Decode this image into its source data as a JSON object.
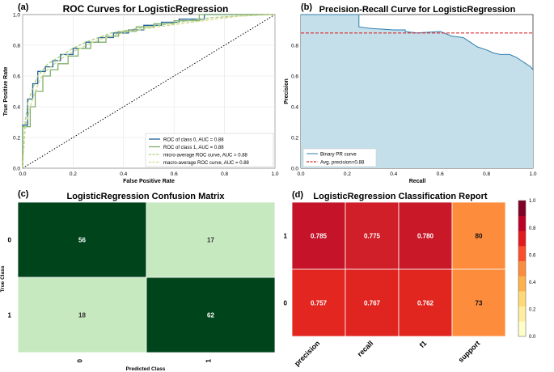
{
  "panels": {
    "roc": {
      "panel_label": "(a)",
      "chart_data": {
        "type": "line",
        "title": "ROC Curves for LogisticRegression",
        "xlabel": "False Positive Rate",
        "ylabel": "True Positive Rate",
        "xlim": [
          0,
          1
        ],
        "ylim": [
          0,
          1
        ],
        "xticks": [
          "0.0",
          "0.2",
          "0.4",
          "0.6",
          "0.8",
          "1.0"
        ],
        "yticks": [
          "0.0",
          "0.2",
          "0.4",
          "0.6",
          "0.8",
          "1.0"
        ],
        "grid": true,
        "legend_position": "bottom-right",
        "series": [
          {
            "name": "ROC of class 0, AUC = 0.88",
            "color": "#1f5f99",
            "dash": "solid",
            "x": [
              0,
              0,
              0.02,
              0.02,
              0.04,
              0.04,
              0.06,
              0.06,
              0.09,
              0.09,
              0.12,
              0.12,
              0.15,
              0.15,
              0.2,
              0.2,
              0.25,
              0.25,
              0.3,
              0.3,
              0.36,
              0.36,
              0.42,
              0.42,
              0.48,
              0.48,
              0.55,
              0.55,
              0.62,
              0.62,
              0.72,
              0.72,
              0.9,
              1
            ],
            "y": [
              0,
              0.28,
              0.28,
              0.45,
              0.45,
              0.55,
              0.55,
              0.63,
              0.63,
              0.66,
              0.66,
              0.7,
              0.7,
              0.74,
              0.74,
              0.78,
              0.78,
              0.82,
              0.82,
              0.85,
              0.85,
              0.88,
              0.88,
              0.9,
              0.9,
              0.93,
              0.93,
              0.95,
              0.95,
              0.97,
              0.97,
              1.0,
              1.0,
              1.0
            ]
          },
          {
            "name": "ROC of class 1, AUC = 0.88",
            "color": "#7fb069",
            "dash": "solid",
            "x": [
              0,
              0,
              0.03,
              0.03,
              0.05,
              0.05,
              0.08,
              0.08,
              0.11,
              0.11,
              0.14,
              0.14,
              0.18,
              0.18,
              0.22,
              0.22,
              0.27,
              0.27,
              0.33,
              0.33,
              0.38,
              0.38,
              0.45,
              0.45,
              0.52,
              0.52,
              0.6,
              0.6,
              0.7,
              0.7,
              1
            ],
            "y": [
              0,
              0.27,
              0.27,
              0.4,
              0.4,
              0.5,
              0.5,
              0.6,
              0.6,
              0.64,
              0.64,
              0.68,
              0.68,
              0.73,
              0.73,
              0.78,
              0.78,
              0.82,
              0.82,
              0.86,
              0.86,
              0.89,
              0.89,
              0.92,
              0.92,
              0.94,
              0.94,
              0.96,
              0.96,
              1.0,
              1.0
            ]
          },
          {
            "name": "micro-average ROC curve, AUC = 0.88",
            "color": "#a9cf7a",
            "dash": "dashed",
            "x": [
              0,
              0.01,
              0.02,
              0.04,
              0.06,
              0.08,
              0.1,
              0.13,
              0.16,
              0.2,
              0.25,
              0.3,
              0.35,
              0.42,
              0.5,
              0.58,
              0.66,
              0.75,
              0.85,
              1
            ],
            "y": [
              0,
              0.3,
              0.42,
              0.52,
              0.6,
              0.64,
              0.68,
              0.71,
              0.74,
              0.78,
              0.82,
              0.85,
              0.88,
              0.9,
              0.92,
              0.94,
              0.96,
              0.98,
              0.99,
              1.0
            ]
          },
          {
            "name": "macro-average ROC curve, AUC = 0.88",
            "color": "#d4d98f",
            "dash": "dashed",
            "x": [
              0,
              0.01,
              0.03,
              0.05,
              0.07,
              0.09,
              0.12,
              0.15,
              0.19,
              0.24,
              0.29,
              0.35,
              0.42,
              0.5,
              0.58,
              0.67,
              0.76,
              0.86,
              1
            ],
            "y": [
              0,
              0.26,
              0.4,
              0.5,
              0.58,
              0.63,
              0.67,
              0.71,
              0.75,
              0.79,
              0.83,
              0.86,
              0.89,
              0.91,
              0.93,
              0.95,
              0.97,
              0.99,
              1.0
            ]
          }
        ],
        "reference_line": {
          "x": [
            0,
            1
          ],
          "y": [
            0,
            1
          ],
          "style": "dotted",
          "color": "#000000"
        }
      }
    },
    "pr": {
      "panel_label": "(b)",
      "chart_data": {
        "type": "area",
        "title": "Precision-Recall Curve for LogisticRegression",
        "xlabel": "Recall",
        "ylabel": "Precision",
        "xlim": [
          0,
          1
        ],
        "ylim": [
          0,
          1.0
        ],
        "xticks": [
          "0.0",
          "0.2",
          "0.4",
          "0.6",
          "0.8",
          "1.0"
        ],
        "yticks": [
          "0.0",
          "0.2",
          "0.4",
          "0.6",
          "0.8"
        ],
        "legend_position": "bottom-left",
        "series": [
          {
            "name": "Binary PR curve",
            "color": "#2f7fb0",
            "x": [
              0,
              0.25,
              0.25,
              0.3,
              0.4,
              0.45,
              0.45,
              0.5,
              0.6,
              0.65,
              0.7,
              0.73,
              0.76,
              0.8,
              0.83,
              0.86,
              0.9,
              0.93,
              0.95,
              0.97,
              0.99,
              1.0
            ],
            "y": [
              1.0,
              1.0,
              0.92,
              0.91,
              0.9,
              0.9,
              0.89,
              0.88,
              0.89,
              0.86,
              0.85,
              0.82,
              0.79,
              0.77,
              0.75,
              0.74,
              0.74,
              0.72,
              0.7,
              0.68,
              0.66,
              0.64
            ]
          }
        ],
        "average_precision": {
          "name": "Avg. precision=0.88",
          "value": 0.88,
          "color": "#d62728",
          "style": "dashed"
        },
        "fill_color": "#c5dfea"
      }
    },
    "cm": {
      "panel_label": "(c)",
      "chart_data": {
        "type": "heatmap",
        "title": "LogisticRegression Confusion Matrix",
        "xlabel": "Predicted Class",
        "ylabel": "True Class",
        "row_labels": [
          "0",
          "1"
        ],
        "col_labels": [
          "0",
          "1"
        ],
        "values": [
          [
            56,
            17
          ],
          [
            18,
            62
          ]
        ],
        "colors": {
          "high": "#00441b",
          "low": "#c7e9c0",
          "high_text": "#ffffff",
          "low_text": "#333333"
        }
      }
    },
    "report": {
      "panel_label": "(d)",
      "chart_data": {
        "type": "heatmap",
        "title": "LogisticRegression Classification Report",
        "row_labels": [
          "1",
          "0"
        ],
        "col_labels": [
          "precision",
          "recall",
          "f1",
          "support"
        ],
        "values": [
          [
            "0.785",
            "0.775",
            "0.780",
            "80"
          ],
          [
            "0.757",
            "0.767",
            "0.762",
            "73"
          ]
        ],
        "cell_colors": [
          [
            "#c5142a",
            "#d01f28",
            "#c91929",
            "#fd8c3c"
          ],
          [
            "#e3261f",
            "#e0241f",
            "#e1251f",
            "#fd8c3c"
          ]
        ],
        "colorbar": {
          "ticks": [
            "0.0",
            "0.2",
            "0.4",
            "0.6",
            "0.8",
            "1.0"
          ],
          "colors": [
            "#ffffcc",
            "#ffeda0",
            "#fed976",
            "#feb24c",
            "#fd8d3c",
            "#fc4e2a",
            "#e31a1c",
            "#bd0026",
            "#800026"
          ]
        }
      }
    }
  }
}
